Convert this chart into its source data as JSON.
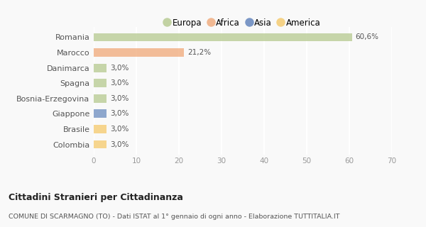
{
  "categories": [
    "Romania",
    "Marocco",
    "Danimarca",
    "Spagna",
    "Bosnia-Erzegovina",
    "Giappone",
    "Brasile",
    "Colombia"
  ],
  "values": [
    60.6,
    21.2,
    3.0,
    3.0,
    3.0,
    3.0,
    3.0,
    3.0
  ],
  "labels": [
    "60,6%",
    "21,2%",
    "3,0%",
    "3,0%",
    "3,0%",
    "3,0%",
    "3,0%",
    "3,0%"
  ],
  "colors": [
    "#b5c98e",
    "#f0a878",
    "#b5c98e",
    "#b5c98e",
    "#b5c98e",
    "#6b8cbf",
    "#f5c96a",
    "#f5c96a"
  ],
  "legend": [
    {
      "label": "Europa",
      "color": "#b5c98e"
    },
    {
      "label": "Africa",
      "color": "#f0a878"
    },
    {
      "label": "Asia",
      "color": "#5c7fba"
    },
    {
      "label": "America",
      "color": "#f5c96a"
    }
  ],
  "xlim": [
    0,
    70
  ],
  "xticks": [
    0,
    10,
    20,
    30,
    40,
    50,
    60,
    70
  ],
  "title": "Cittadini Stranieri per Cittadinanza",
  "subtitle": "COMUNE DI SCARMAGNO (TO) - Dati ISTAT al 1° gennaio di ogni anno - Elaborazione TUTTITALIA.IT",
  "background_color": "#f9f9f9",
  "grid_color": "#ffffff",
  "bar_height": 0.55
}
